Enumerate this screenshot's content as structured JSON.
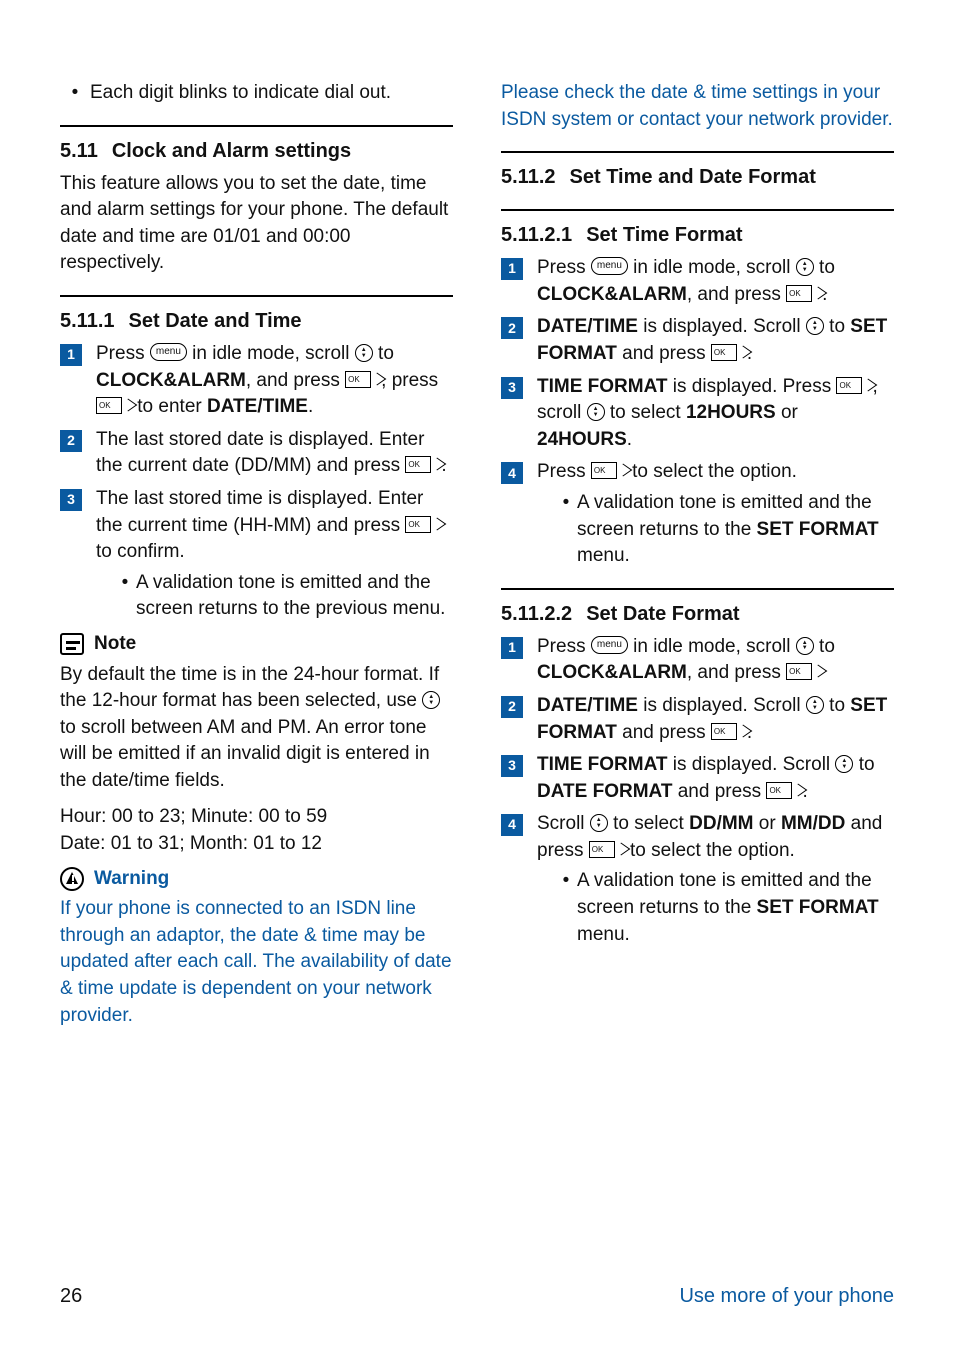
{
  "colors": {
    "accent": "#0a5aa0",
    "text": "#111111",
    "bg": "#ffffff"
  },
  "left": {
    "top_bullet": "Each digit blinks to indicate dial out.",
    "s511_num": "5.11",
    "s511_title": "Clock and Alarm settings",
    "s511_para": "This feature allows you to set the date, time and alarm settings for your phone. The default date and time are 01/01 and 00:00 respectively.",
    "s5111_num": "5.11.1",
    "s5111_title": "Set Date and Time",
    "step1_a": "Press ",
    "step1_b": " in idle mode, scroll ",
    "step1_c": " to ",
    "step1_clock": "CLOCK&ALARM",
    "step1_d": ", and press ",
    "step1_e": ", press ",
    "step1_f": " to enter ",
    "step1_datetime": "DATE/TIME",
    "step1_g": ".",
    "step2_a": "The last stored date is displayed. Enter the current date (DD/MM) and press ",
    "step2_b": ".",
    "step3_a": "The last stored time is displayed. Enter the current time (HH-MM) and press ",
    "step3_b": " to confirm.",
    "step3_bullet": "A validation tone is emitted and the screen returns to the previous menu.",
    "note_label": "Note",
    "note_a": "By default the time is in the 24-hour format. If the 12-hour format has been selected, use ",
    "note_b": " to scroll between AM and PM. An error tone will be emitted if an invalid digit is entered in the date/time fields.",
    "note_hour": "Hour: 00 to 23; Minute: 00 to 59",
    "note_date": "Date: 01 to 31; Month: 01 to 12",
    "warn_label": "Warning",
    "warn_text": "If your phone is connected to an ISDN line through an adaptor, the date & time may be updated after each call. The availability of date & time update is dependent on your network provider. "
  },
  "right": {
    "warn_cont": "Please check the date & time settings in your ISDN system or contact your network provider.",
    "s5112_num": "5.11.2",
    "s5112_title": "Set Time and Date Format",
    "s51121_num": "5.11.2.1",
    "s51121_title": "Set Time Format",
    "t_step1_a": "Press ",
    "t_step1_b": " in idle mode, scroll ",
    "t_step1_c": " to ",
    "t_clock": "CLOCK&ALARM",
    "t_step1_d": ", and press ",
    "t_step1_e": ".",
    "t_step2_dt": "DATE/TIME",
    "t_step2_a": " is displayed. Scroll ",
    "t_step2_b": " to ",
    "t_setformat": "SET FORMAT",
    "t_step2_c": " and press ",
    "t_step2_d": ".",
    "t_step3_tf": "TIME FORMAT",
    "t_step3_a": " is displayed. Press ",
    "t_step3_b": ", scroll ",
    "t_step3_c": " to select ",
    "t_12h": "12HOURS",
    "t_or": " or ",
    "t_24h": "24HOURS",
    "t_step3_d": ".",
    "t_step4_a": "Press ",
    "t_step4_b": " to select the option.",
    "t_bullet_a": "A validation tone is emitted and the screen returns to the ",
    "t_bullet_sf": "SET FORMAT",
    "t_bullet_b": " menu.",
    "s51122_num": "5.11.2.2",
    "s51122_title": "Set Date Format",
    "d_step1_a": "Press ",
    "d_step1_b": " in idle mode, scroll ",
    "d_step1_c": " to ",
    "d_step1_d": ", and press ",
    "d_step2_a": " is displayed. Scroll ",
    "d_step2_b": " to ",
    "d_step2_c": " and press ",
    "d_step2_d": ".",
    "d_step3_a": " is displayed. Scroll ",
    "d_step3_b": " to ",
    "d_dateformat": "DATE FORMAT",
    "d_step3_c": " and press ",
    "d_step3_d": ".",
    "d_step4_a": "Scroll ",
    "d_step4_b": " to select ",
    "d_ddmm": "DD/MM",
    "d_or": " or ",
    "d_mmdd": "MM/DD",
    "d_step4_c": " and press ",
    "d_step4_d": " to select the option.",
    "d_bullet_a": "A validation tone is emitted and the screen returns to the ",
    "d_bullet_b": " menu."
  },
  "footer": {
    "page": "26",
    "label": "Use more of your phone"
  },
  "icons": {
    "menu_label": "menu"
  }
}
